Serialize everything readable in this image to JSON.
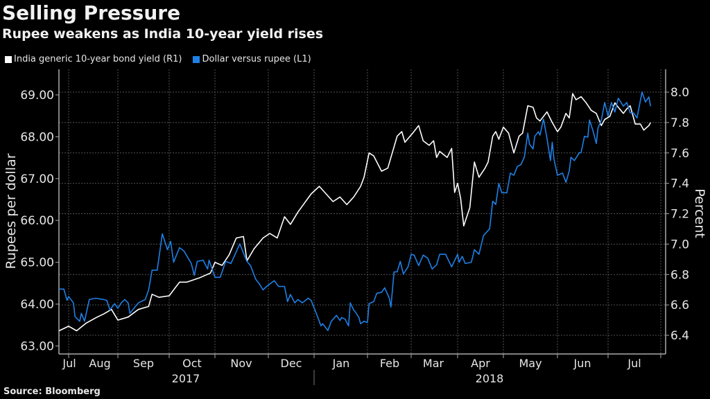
{
  "title": "Selling Pressure",
  "subtitle": "Rupee weakens as India 10-year yield rises",
  "source": "Source: Bloomberg",
  "colors": {
    "background": "#000000",
    "yield_line": "#ffffff",
    "rupee_line": "#1f80e6",
    "grid": "#5a5a5a"
  },
  "chart_data": {
    "type": "line",
    "grid": true,
    "legend_placement": "top-left",
    "xlabel": "",
    "x_ticks": [
      "Jul",
      "Aug",
      "Sep",
      "Oct",
      "Nov",
      "Dec",
      "Jan",
      "Feb",
      "Mar",
      "Apr",
      "May",
      "Jun",
      "Jul"
    ],
    "x_years": [
      "2017",
      "2018"
    ],
    "y_left": {
      "label": "Rupees per dollar",
      "range": [
        62.8,
        69.6
      ],
      "ticks": [
        "63.00",
        "64.00",
        "65.00",
        "66.00",
        "67.00",
        "68.00",
        "69.00"
      ]
    },
    "y_right": {
      "label": "Percent",
      "range": [
        6.3,
        8.15
      ],
      "ticks": [
        "6.4",
        "6.6",
        "6.8",
        "7.0",
        "7.2",
        "7.4",
        "7.6",
        "7.8",
        "8.0"
      ]
    },
    "series": [
      {
        "name": "India generic 10-year bond yield (R1)",
        "axis": "right",
        "color": "#ffffff",
        "points": [
          [
            "2017-07-26",
            6.43
          ],
          [
            "2017-08-01",
            6.46
          ],
          [
            "2017-08-06",
            6.43
          ],
          [
            "2017-08-12",
            6.48
          ],
          [
            "2017-08-19",
            6.52
          ],
          [
            "2017-08-23",
            6.54
          ],
          [
            "2017-08-28",
            6.57
          ],
          [
            "2017-09-01",
            6.5
          ],
          [
            "2017-09-07",
            6.52
          ],
          [
            "2017-09-13",
            6.57
          ],
          [
            "2017-09-19",
            6.59
          ],
          [
            "2017-09-21",
            6.67
          ],
          [
            "2017-09-25",
            6.65
          ],
          [
            "2017-10-01",
            6.66
          ],
          [
            "2017-10-08",
            6.75
          ],
          [
            "2017-10-13",
            6.75
          ],
          [
            "2017-10-22",
            6.78
          ],
          [
            "2017-10-29",
            6.81
          ],
          [
            "2017-11-01",
            6.88
          ],
          [
            "2017-11-05",
            6.86
          ],
          [
            "2017-11-09",
            6.93
          ],
          [
            "2017-11-13",
            7.04
          ],
          [
            "2017-11-17",
            7.05
          ],
          [
            "2017-11-19",
            6.89
          ],
          [
            "2017-11-23",
            6.97
          ],
          [
            "2017-11-28",
            7.04
          ],
          [
            "2017-12-02",
            7.07
          ],
          [
            "2017-12-07",
            7.04
          ],
          [
            "2017-12-12",
            7.18
          ],
          [
            "2017-12-16",
            7.13
          ],
          [
            "2017-12-21",
            7.21
          ],
          [
            "2017-12-30",
            7.33
          ],
          [
            "2018-01-04",
            7.38
          ],
          [
            "2018-01-12",
            7.28
          ],
          [
            "2018-01-16",
            7.31
          ],
          [
            "2018-01-20",
            7.26
          ],
          [
            "2018-01-24",
            7.31
          ],
          [
            "2018-01-28",
            7.38
          ],
          [
            "2018-01-30",
            7.44
          ],
          [
            "2018-02-02",
            7.6
          ],
          [
            "2018-02-05",
            7.58
          ],
          [
            "2018-02-10",
            7.48
          ],
          [
            "2018-02-14",
            7.5
          ],
          [
            "2018-02-16",
            7.57
          ],
          [
            "2018-02-20",
            7.71
          ],
          [
            "2018-02-23",
            7.74
          ],
          [
            "2018-02-25",
            7.67
          ],
          [
            "2018-03-02",
            7.73
          ],
          [
            "2018-03-06",
            7.78
          ],
          [
            "2018-03-09",
            7.68
          ],
          [
            "2018-03-13",
            7.65
          ],
          [
            "2018-03-16",
            7.68
          ],
          [
            "2018-03-18",
            7.57
          ],
          [
            "2018-03-20",
            7.61
          ],
          [
            "2018-03-25",
            7.57
          ],
          [
            "2018-03-28",
            7.63
          ],
          [
            "2018-03-30",
            7.34
          ],
          [
            "2018-04-01",
            7.4
          ],
          [
            "2018-04-03",
            7.3
          ],
          [
            "2018-04-05",
            7.12
          ],
          [
            "2018-04-09",
            7.24
          ],
          [
            "2018-04-12",
            7.54
          ],
          [
            "2018-04-15",
            7.44
          ],
          [
            "2018-04-19",
            7.5
          ],
          [
            "2018-04-21",
            7.54
          ],
          [
            "2018-04-24",
            7.71
          ],
          [
            "2018-04-26",
            7.74
          ],
          [
            "2018-04-28",
            7.69
          ],
          [
            "2018-05-01",
            7.77
          ],
          [
            "2018-05-04",
            7.73
          ],
          [
            "2018-05-07",
            7.6
          ],
          [
            "2018-05-10",
            7.71
          ],
          [
            "2018-05-12",
            7.73
          ],
          [
            "2018-05-15",
            7.91
          ],
          [
            "2018-05-18",
            7.9
          ],
          [
            "2018-05-20",
            7.83
          ],
          [
            "2018-05-22",
            7.81
          ],
          [
            "2018-05-26",
            7.87
          ],
          [
            "2018-05-29",
            7.8
          ],
          [
            "2018-06-01",
            7.74
          ],
          [
            "2018-06-03",
            7.77
          ],
          [
            "2018-06-06",
            7.86
          ],
          [
            "2018-06-08",
            7.83
          ],
          [
            "2018-06-10",
            7.99
          ],
          [
            "2018-06-12",
            7.95
          ],
          [
            "2018-06-15",
            7.97
          ],
          [
            "2018-06-18",
            7.93
          ],
          [
            "2018-06-21",
            7.88
          ],
          [
            "2018-06-24",
            7.86
          ],
          [
            "2018-06-27",
            7.78
          ],
          [
            "2018-06-29",
            7.82
          ],
          [
            "2018-07-02",
            7.84
          ],
          [
            "2018-07-05",
            7.93
          ],
          [
            "2018-07-07",
            7.9
          ],
          [
            "2018-07-10",
            7.86
          ],
          [
            "2018-07-12",
            7.89
          ],
          [
            "2018-07-14",
            7.91
          ],
          [
            "2018-07-17",
            7.79
          ],
          [
            "2018-07-20",
            7.79
          ],
          [
            "2018-07-22",
            7.75
          ],
          [
            "2018-07-25",
            7.78
          ],
          [
            "2018-07-26",
            7.8
          ]
        ]
      },
      {
        "name": "Dollar versus rupee (L1)",
        "axis": "left",
        "color": "#1f80e6",
        "points": [
          [
            "2017-07-26",
            64.36
          ],
          [
            "2017-07-29",
            64.36
          ],
          [
            "2017-07-31",
            64.09
          ],
          [
            "2017-08-01",
            64.18
          ],
          [
            "2017-08-04",
            64.03
          ],
          [
            "2017-08-05",
            63.7
          ],
          [
            "2017-08-08",
            63.59
          ],
          [
            "2017-08-09",
            63.78
          ],
          [
            "2017-08-11",
            63.59
          ],
          [
            "2017-08-14",
            64.11
          ],
          [
            "2017-08-18",
            64.14
          ],
          [
            "2017-08-23",
            64.11
          ],
          [
            "2017-08-25",
            64.09
          ],
          [
            "2017-08-27",
            63.86
          ],
          [
            "2017-08-30",
            64.01
          ],
          [
            "2017-09-01",
            63.9
          ],
          [
            "2017-09-03",
            64.03
          ],
          [
            "2017-09-05",
            64.11
          ],
          [
            "2017-09-07",
            64.03
          ],
          [
            "2017-09-08",
            63.78
          ],
          [
            "2017-09-13",
            64.03
          ],
          [
            "2017-09-17",
            64.11
          ],
          [
            "2017-09-19",
            64.34
          ],
          [
            "2017-09-21",
            64.81
          ],
          [
            "2017-09-24",
            64.81
          ],
          [
            "2017-09-27",
            65.68
          ],
          [
            "2017-09-30",
            65.3
          ],
          [
            "2017-10-02",
            65.5
          ],
          [
            "2017-10-04",
            65.0
          ],
          [
            "2017-10-08",
            65.35
          ],
          [
            "2017-10-11",
            65.27
          ],
          [
            "2017-10-16",
            64.97
          ],
          [
            "2017-10-18",
            64.69
          ],
          [
            "2017-10-20",
            65.02
          ],
          [
            "2017-10-24",
            65.05
          ],
          [
            "2017-10-27",
            64.84
          ],
          [
            "2017-10-28",
            65.05
          ],
          [
            "2017-11-01",
            64.64
          ],
          [
            "2017-11-04",
            64.64
          ],
          [
            "2017-11-07",
            65.02
          ],
          [
            "2017-11-10",
            64.97
          ],
          [
            "2017-11-15",
            65.44
          ],
          [
            "2017-11-17",
            65.22
          ],
          [
            "2017-11-19",
            65.02
          ],
          [
            "2017-11-21",
            64.92
          ],
          [
            "2017-11-24",
            64.59
          ],
          [
            "2017-11-26",
            64.48
          ],
          [
            "2017-11-28",
            64.34
          ],
          [
            "2017-11-30",
            64.42
          ],
          [
            "2017-12-05",
            64.56
          ],
          [
            "2017-12-08",
            64.42
          ],
          [
            "2017-12-12",
            64.42
          ],
          [
            "2017-12-14",
            64.06
          ],
          [
            "2017-12-16",
            64.23
          ],
          [
            "2017-12-19",
            64.03
          ],
          [
            "2017-12-21",
            64.11
          ],
          [
            "2017-12-24",
            64.03
          ],
          [
            "2017-12-28",
            64.14
          ],
          [
            "2017-12-30",
            64.09
          ],
          [
            "2018-01-02",
            63.81
          ],
          [
            "2018-01-05",
            63.48
          ],
          [
            "2018-01-06",
            63.53
          ],
          [
            "2018-01-09",
            63.37
          ],
          [
            "2018-01-11",
            63.59
          ],
          [
            "2018-01-14",
            63.73
          ],
          [
            "2018-01-16",
            63.61
          ],
          [
            "2018-01-17",
            63.68
          ],
          [
            "2018-01-19",
            63.64
          ],
          [
            "2018-01-21",
            63.48
          ],
          [
            "2018-01-22",
            64.03
          ],
          [
            "2018-01-24",
            63.86
          ],
          [
            "2018-01-25",
            63.81
          ],
          [
            "2018-01-27",
            63.68
          ],
          [
            "2018-01-28",
            63.53
          ],
          [
            "2018-01-30",
            63.59
          ],
          [
            "2018-02-01",
            63.56
          ],
          [
            "2018-02-02",
            64.01
          ],
          [
            "2018-02-05",
            64.06
          ],
          [
            "2018-02-07",
            64.26
          ],
          [
            "2018-02-10",
            64.28
          ],
          [
            "2018-02-12",
            64.39
          ],
          [
            "2018-02-15",
            64.14
          ],
          [
            "2018-02-16",
            63.93
          ],
          [
            "2018-02-18",
            64.77
          ],
          [
            "2018-02-20",
            64.77
          ],
          [
            "2018-02-22",
            65.02
          ],
          [
            "2018-02-24",
            64.72
          ],
          [
            "2018-02-27",
            64.89
          ],
          [
            "2018-03-01",
            65.19
          ],
          [
            "2018-03-03",
            65.17
          ],
          [
            "2018-03-06",
            64.92
          ],
          [
            "2018-03-09",
            65.17
          ],
          [
            "2018-03-12",
            65.1
          ],
          [
            "2018-03-15",
            64.84
          ],
          [
            "2018-03-18",
            64.94
          ],
          [
            "2018-03-20",
            65.19
          ],
          [
            "2018-03-24",
            65.19
          ],
          [
            "2018-03-28",
            64.89
          ],
          [
            "2018-04-01",
            65.19
          ],
          [
            "2018-04-02",
            65.0
          ],
          [
            "2018-04-04",
            65.14
          ],
          [
            "2018-04-06",
            64.97
          ],
          [
            "2018-04-10",
            65.0
          ],
          [
            "2018-04-12",
            65.3
          ],
          [
            "2018-04-15",
            65.19
          ],
          [
            "2018-04-18",
            65.64
          ],
          [
            "2018-04-20",
            65.72
          ],
          [
            "2018-04-22",
            65.8
          ],
          [
            "2018-04-24",
            66.46
          ],
          [
            "2018-04-26",
            66.38
          ],
          [
            "2018-04-28",
            66.88
          ],
          [
            "2018-04-30",
            66.66
          ],
          [
            "2018-05-03",
            66.66
          ],
          [
            "2018-05-05",
            67.13
          ],
          [
            "2018-05-07",
            67.08
          ],
          [
            "2018-05-09",
            67.29
          ],
          [
            "2018-05-11",
            67.33
          ],
          [
            "2018-05-13",
            67.51
          ],
          [
            "2018-05-15",
            68.09
          ],
          [
            "2018-05-16",
            67.82
          ],
          [
            "2018-05-18",
            67.71
          ],
          [
            "2018-05-19",
            68.01
          ],
          [
            "2018-05-21",
            68.12
          ],
          [
            "2018-05-22",
            68.04
          ],
          [
            "2018-05-24",
            68.42
          ],
          [
            "2018-05-26",
            67.96
          ],
          [
            "2018-05-28",
            67.43
          ],
          [
            "2018-05-29",
            67.87
          ],
          [
            "2018-05-30",
            67.46
          ],
          [
            "2018-06-01",
            67.08
          ],
          [
            "2018-06-04",
            67.13
          ],
          [
            "2018-06-06",
            66.91
          ],
          [
            "2018-06-08",
            67.18
          ],
          [
            "2018-06-09",
            67.51
          ],
          [
            "2018-06-11",
            67.43
          ],
          [
            "2018-06-14",
            67.62
          ],
          [
            "2018-06-15",
            67.62
          ],
          [
            "2018-06-17",
            68.01
          ],
          [
            "2018-06-19",
            67.99
          ],
          [
            "2018-06-20",
            68.4
          ],
          [
            "2018-06-22",
            68.15
          ],
          [
            "2018-06-24",
            67.84
          ],
          [
            "2018-06-25",
            68.2
          ],
          [
            "2018-06-27",
            68.4
          ],
          [
            "2018-06-29",
            68.82
          ],
          [
            "2018-07-01",
            68.49
          ],
          [
            "2018-07-03",
            68.82
          ],
          [
            "2018-07-05",
            68.59
          ],
          [
            "2018-07-07",
            68.92
          ],
          [
            "2018-07-10",
            68.73
          ],
          [
            "2018-07-12",
            68.82
          ],
          [
            "2018-07-14",
            68.57
          ],
          [
            "2018-07-16",
            68.57
          ],
          [
            "2018-07-18",
            68.45
          ],
          [
            "2018-07-21",
            69.07
          ],
          [
            "2018-07-23",
            68.83
          ],
          [
            "2018-07-25",
            68.95
          ],
          [
            "2018-07-26",
            68.73
          ]
        ]
      }
    ]
  }
}
